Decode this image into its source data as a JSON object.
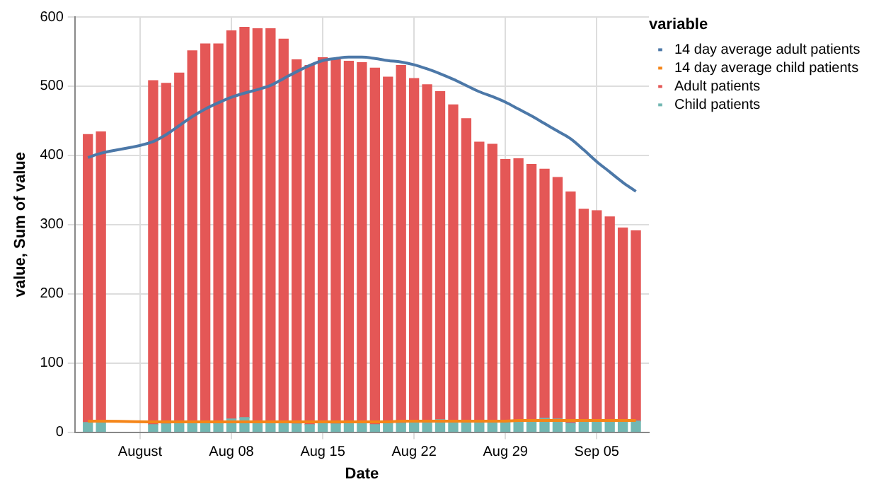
{
  "chart_data": {
    "type": "bar",
    "xlabel": "Date",
    "ylabel": "value, Sum of value",
    "legend_title": "variable",
    "x": [
      "--07-28",
      "--07-29",
      "--08-02",
      "--08-03",
      "--08-04",
      "--08-05",
      "--08-06",
      "--08-07",
      "--08-08",
      "--08-09",
      "--08-10",
      "--08-11",
      "--08-12",
      "--08-13",
      "--08-14",
      "--08-15",
      "--08-16",
      "--08-17",
      "--08-18",
      "--08-19",
      "--08-20",
      "--08-21",
      "--08-22",
      "--08-23",
      "--08-24",
      "--08-25",
      "--08-26",
      "--08-27",
      "--08-28",
      "--08-29",
      "--08-30",
      "--08-31",
      "--09-01",
      "--09-02",
      "--09-03",
      "--09-04",
      "--09-05",
      "--09-06",
      "--09-07",
      "--09-08"
    ],
    "series": [
      {
        "name": "14 day average adult patients",
        "type": "line",
        "color": "#4c78a8",
        "values": [
          397,
          403,
          420,
          430,
          443,
          456,
          467,
          476,
          484,
          490,
          495,
          501,
          511,
          521,
          530,
          537,
          540,
          542,
          542,
          540,
          537,
          535,
          531,
          525,
          518,
          510,
          501,
          492,
          485,
          477,
          467,
          457,
          446,
          435,
          424,
          408,
          391,
          376,
          361,
          348
        ]
      },
      {
        "name": "14 day average child patients",
        "type": "line",
        "color": "#f58518",
        "values": [
          16,
          16,
          15,
          15,
          15,
          15,
          15,
          15,
          15,
          15,
          15,
          15,
          15,
          15,
          15,
          15,
          15,
          15,
          15,
          15,
          15,
          16,
          16,
          16,
          16,
          16,
          16,
          16,
          16,
          16,
          17,
          17,
          17,
          17,
          17,
          17,
          17,
          17,
          17,
          17
        ]
      },
      {
        "name": "Child patients",
        "color": "#72b7b2",
        "values": [
          14,
          15,
          11,
          12,
          14,
          15,
          14,
          13,
          19,
          21,
          16,
          14,
          14,
          12,
          11,
          13,
          12,
          14,
          15,
          11,
          13,
          13,
          14,
          16,
          18,
          17,
          14,
          15,
          17,
          16,
          16,
          15,
          20,
          19,
          13,
          16,
          17,
          15,
          15,
          16
        ]
      },
      {
        "name": "Adult patients",
        "color": "#e45756",
        "values": [
          416,
          419,
          497,
          492,
          505,
          536,
          547,
          548,
          561,
          564,
          567,
          569,
          554,
          526,
          519,
          528,
          526,
          522,
          519,
          515,
          500,
          517,
          497,
          486,
          474,
          456,
          439,
          404,
          399,
          378,
          379,
          372,
          360,
          349,
          334,
          306,
          303,
          296,
          280,
          275
        ]
      }
    ],
    "stacked": true,
    "xlim": [
      "--07-27",
      "--09-09"
    ],
    "xticks": [
      {
        "value": "--08-01",
        "label": "August"
      },
      {
        "value": "--08-08",
        "label": "Aug 08"
      },
      {
        "value": "--08-15",
        "label": "Aug 15"
      },
      {
        "value": "--08-22",
        "label": "Aug 22"
      },
      {
        "value": "--08-29",
        "label": "Aug 29"
      },
      {
        "value": "--09-05",
        "label": "Sep 05"
      }
    ],
    "ylim": [
      0,
      600
    ],
    "yticks": [
      0,
      100,
      200,
      300,
      400,
      500,
      600
    ],
    "grid": true,
    "legend": "top right"
  }
}
